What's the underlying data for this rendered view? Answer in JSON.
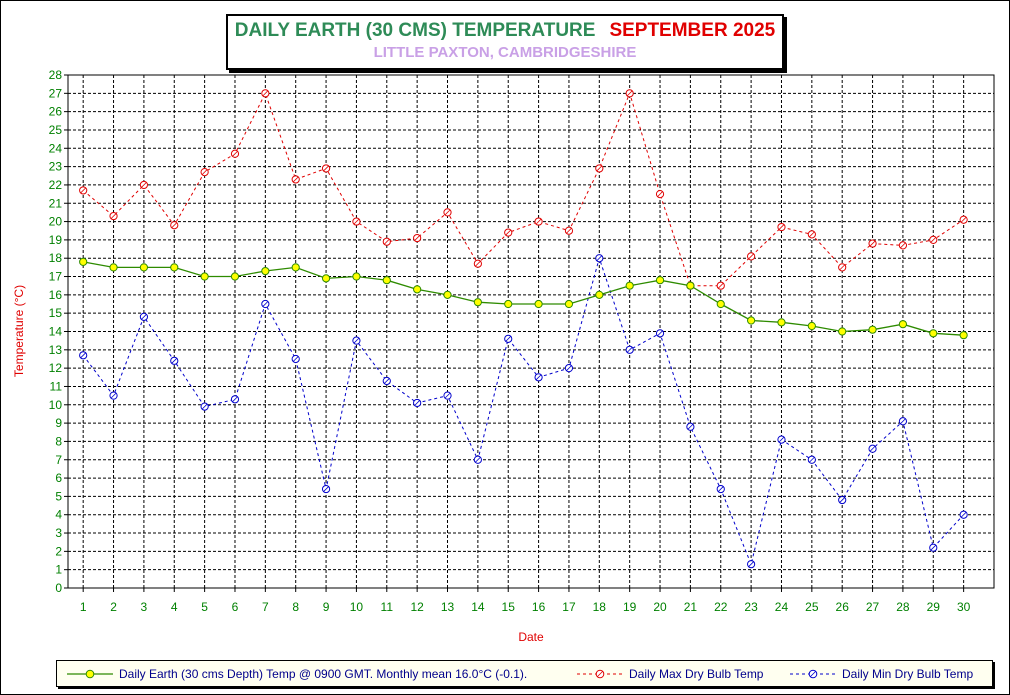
{
  "chart_title": "DAILY EARTH (30 CMS) TEMPERATURE",
  "chart_month": "SEPTEMBER 2025",
  "chart_subtitle": "LITTLE PAXTON, CAMBRIDGESHIRE",
  "colors": {
    "earth": "#2e8b00",
    "earth_marker": "#ffff00",
    "max": "#e00000",
    "min": "#0000cc",
    "axis_label": "#e00000",
    "tick_x": "#008000"
  },
  "chart_data": {
    "type": "line",
    "xlabel": "Date",
    "ylabel": "Temperature (°C)",
    "ylim": [
      0,
      28
    ],
    "grid": true,
    "legend_position": "bottom",
    "x": [
      1,
      2,
      3,
      4,
      5,
      6,
      7,
      8,
      9,
      10,
      11,
      12,
      13,
      14,
      15,
      16,
      17,
      18,
      19,
      20,
      21,
      22,
      23,
      24,
      25,
      26,
      27,
      28,
      29,
      30
    ],
    "series": [
      {
        "name": "Daily Earth (30 cms Depth) Temp @ 0900 GMT. Monthly mean 16.0°C (-0.1).",
        "style": "solid",
        "values": [
          17.8,
          17.5,
          17.5,
          17.5,
          17.0,
          17.0,
          17.3,
          17.5,
          16.9,
          17.0,
          16.8,
          16.3,
          16.0,
          15.6,
          15.5,
          15.5,
          15.5,
          16.0,
          16.5,
          16.8,
          16.5,
          15.5,
          14.6,
          14.5,
          14.3,
          14.0,
          14.1,
          14.4,
          13.9,
          13.8
        ]
      },
      {
        "name": "Daily Max Dry Bulb Temp",
        "style": "dashed",
        "values": [
          21.7,
          20.3,
          22.0,
          19.8,
          22.7,
          23.7,
          27.0,
          22.3,
          22.9,
          20.0,
          18.9,
          19.1,
          20.5,
          17.7,
          19.4,
          20.0,
          19.5,
          22.9,
          27.0,
          21.5,
          16.5,
          16.5,
          18.1,
          19.7,
          19.3,
          17.5,
          18.8,
          18.7,
          19.0,
          20.1
        ]
      },
      {
        "name": "Daily Min Dry Bulb Temp",
        "style": "dashed",
        "values": [
          12.7,
          10.5,
          14.8,
          12.4,
          9.9,
          10.3,
          15.5,
          12.5,
          5.4,
          13.5,
          11.3,
          10.1,
          10.5,
          7.0,
          13.6,
          11.5,
          12.0,
          18.0,
          13.0,
          13.9,
          8.8,
          5.4,
          1.3,
          8.1,
          7.0,
          4.8,
          7.6,
          9.1,
          2.2,
          4.0
        ]
      }
    ]
  }
}
